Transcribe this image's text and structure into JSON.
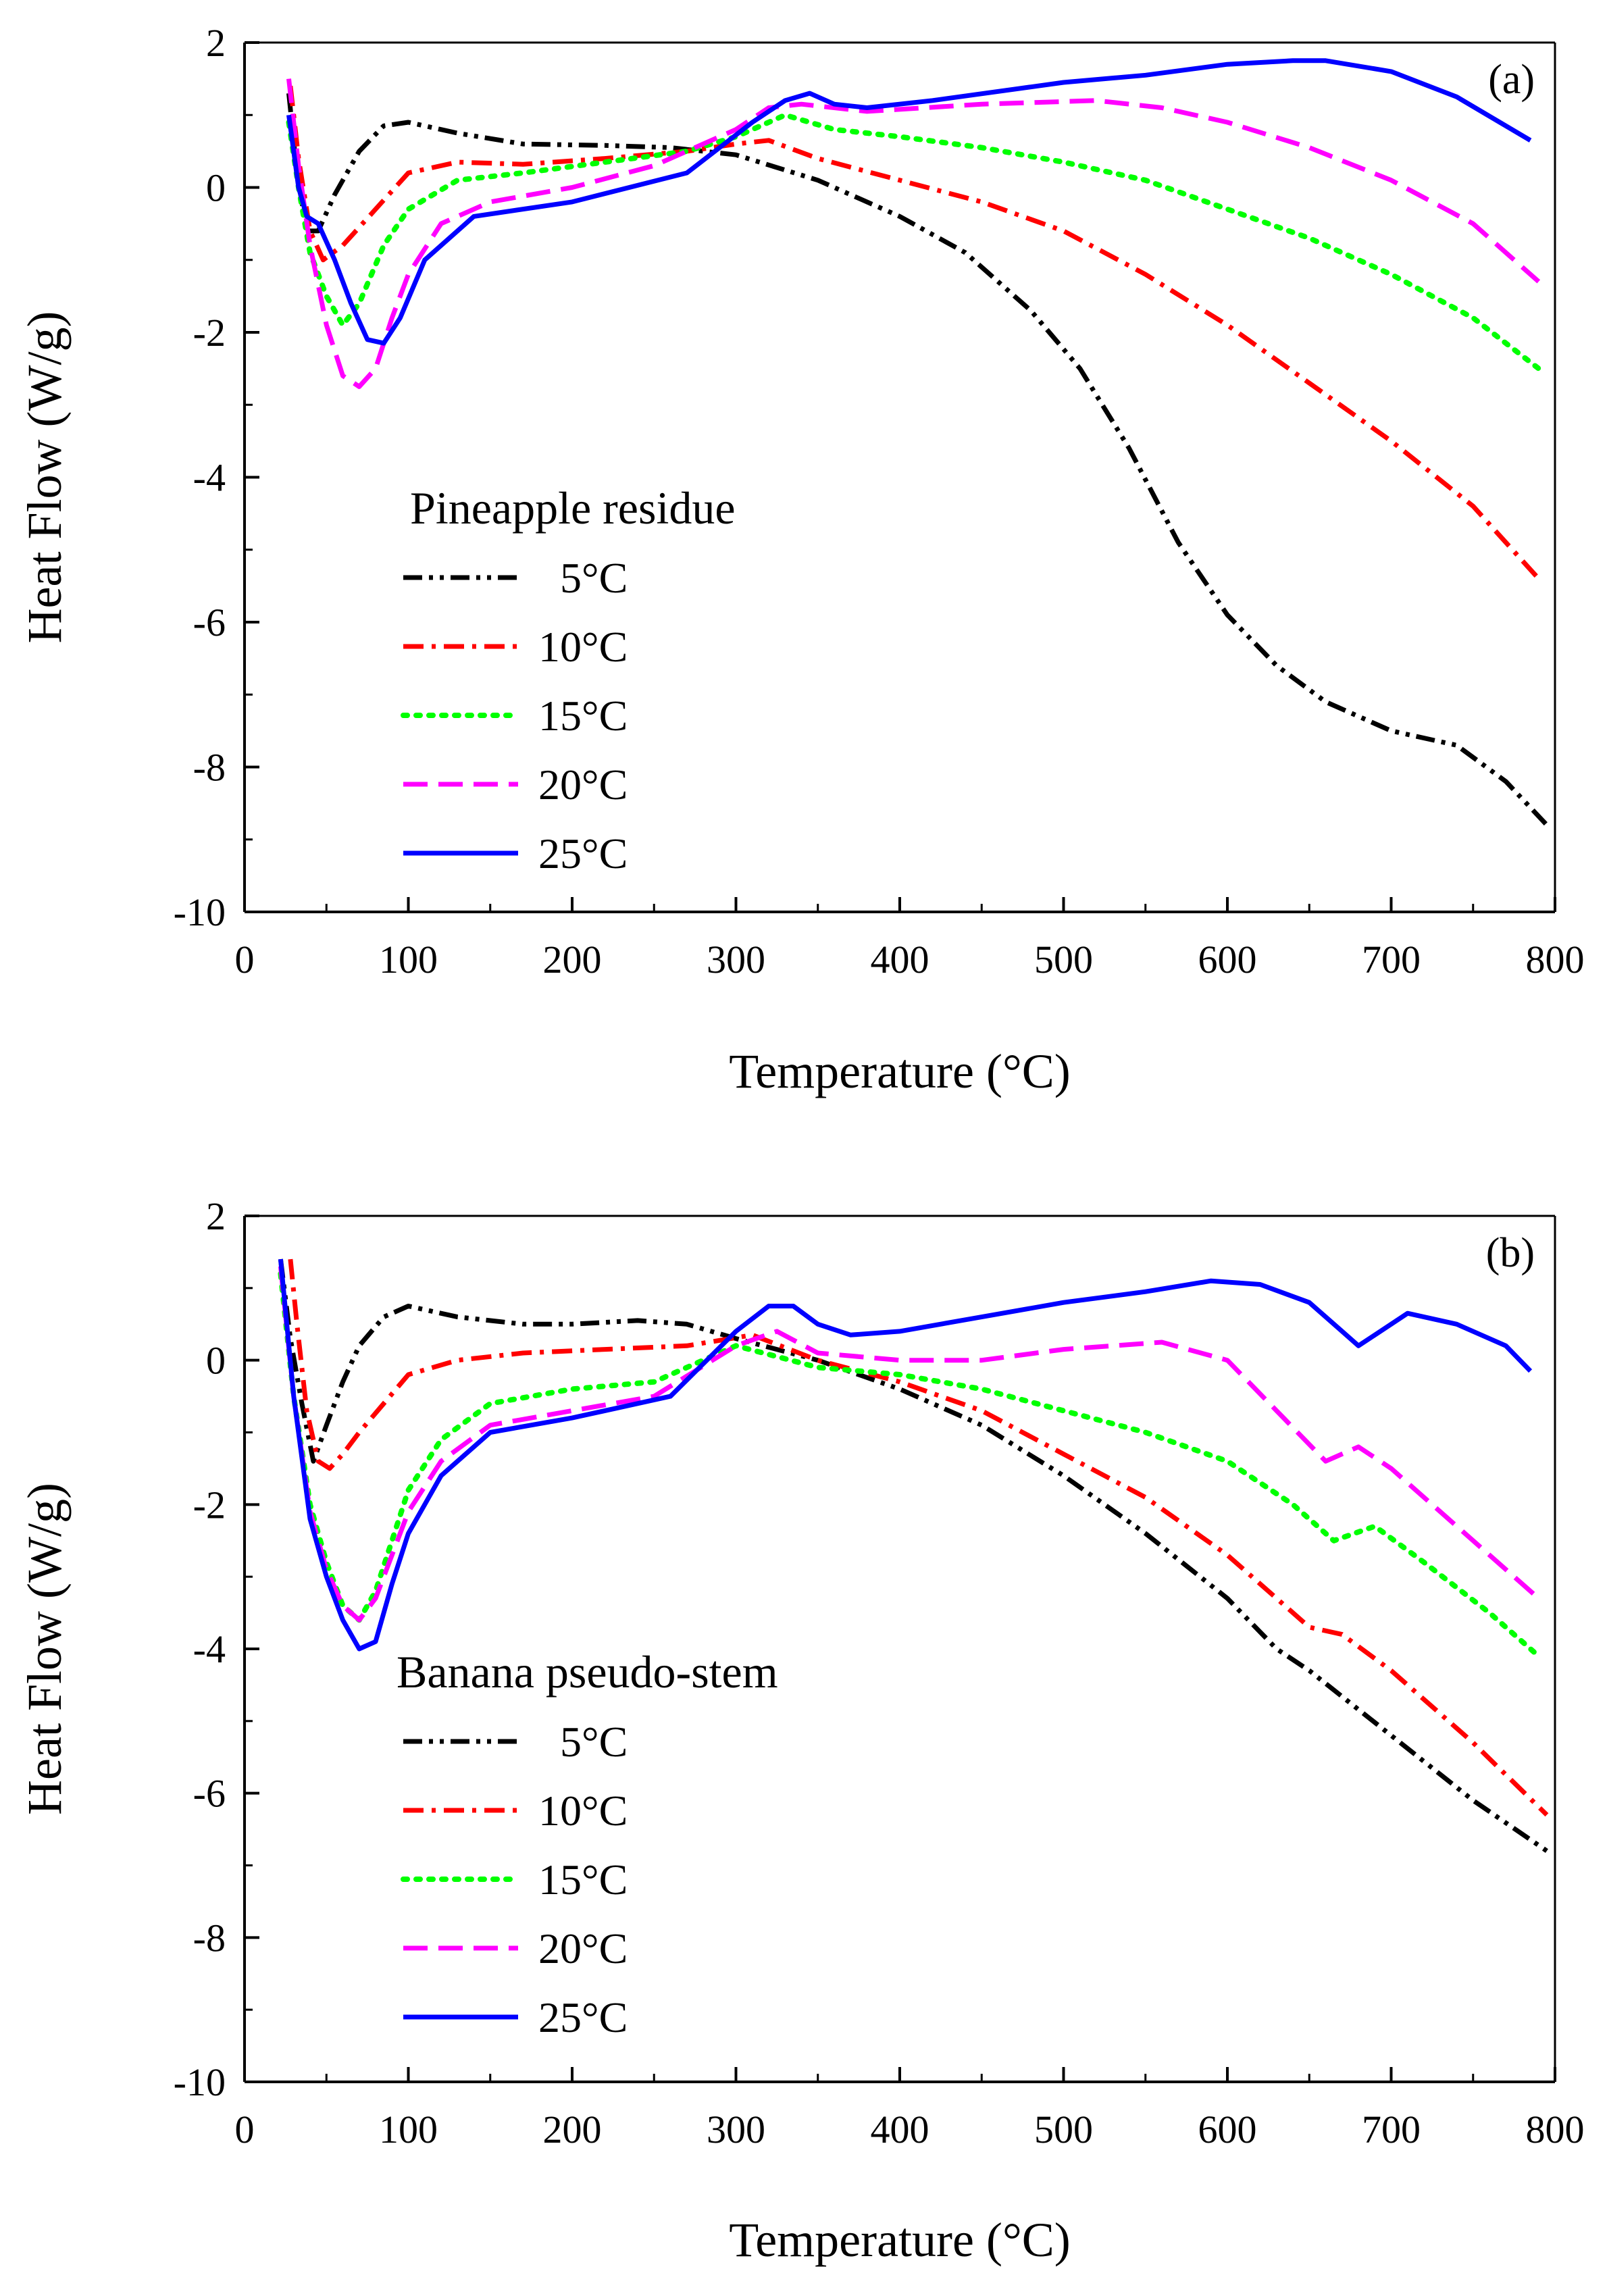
{
  "chart_data": [
    {
      "type": "line",
      "panel_label": "(a)",
      "xlabel": "Temperature (°C)",
      "ylabel": "Heat Flow (W/g)",
      "xlim": [
        0,
        800
      ],
      "ylim": [
        -10,
        2
      ],
      "xticks": [
        "0",
        "100",
        "200",
        "300",
        "400",
        "500",
        "600",
        "700",
        "800"
      ],
      "yticks": [
        "2",
        "0",
        "-2",
        "-4",
        "-6",
        "-8",
        "-10"
      ],
      "legend_title": "Pineapple residue",
      "legend_position": "left-center",
      "series": [
        {
          "name": "5°C",
          "color": "#000000",
          "style": "dashdotdot",
          "x": [
            27,
            32,
            38,
            45,
            55,
            70,
            85,
            100,
            130,
            170,
            220,
            260,
            300,
            350,
            400,
            440,
            480,
            510,
            540,
            570,
            600,
            630,
            660,
            700,
            740,
            770,
            795
          ],
          "y": [
            1.3,
            0.2,
            -0.6,
            -0.6,
            -0.1,
            0.5,
            0.85,
            0.9,
            0.75,
            0.6,
            0.58,
            0.55,
            0.45,
            0.1,
            -0.4,
            -0.9,
            -1.7,
            -2.5,
            -3.6,
            -4.9,
            -5.9,
            -6.6,
            -7.1,
            -7.5,
            -7.7,
            -8.2,
            -8.8
          ]
        },
        {
          "name": "10°C",
          "color": "#ff0000",
          "style": "dashdot",
          "x": [
            28,
            33,
            40,
            48,
            60,
            80,
            100,
            130,
            170,
            220,
            270,
            300,
            320,
            350,
            400,
            450,
            500,
            550,
            600,
            650,
            700,
            750,
            790
          ],
          "y": [
            1.4,
            0.4,
            -0.6,
            -1.0,
            -0.8,
            -0.3,
            0.2,
            0.35,
            0.32,
            0.4,
            0.5,
            0.6,
            0.65,
            0.4,
            0.1,
            -0.2,
            -0.6,
            -1.2,
            -1.9,
            -2.7,
            -3.5,
            -4.4,
            -5.4
          ]
        },
        {
          "name": "15°C",
          "color": "#00ff00",
          "style": "dotted",
          "x": [
            27,
            33,
            40,
            50,
            60,
            70,
            85,
            100,
            130,
            170,
            220,
            270,
            300,
            330,
            360,
            400,
            450,
            500,
            550,
            600,
            650,
            700,
            750,
            790
          ],
          "y": [
            0.9,
            0.0,
            -0.9,
            -1.5,
            -1.9,
            -1.6,
            -0.8,
            -0.3,
            0.1,
            0.2,
            0.35,
            0.5,
            0.7,
            1.0,
            0.8,
            0.7,
            0.55,
            0.35,
            0.1,
            -0.3,
            -0.7,
            -1.2,
            -1.8,
            -2.5
          ]
        },
        {
          "name": "20°C",
          "color": "#ff00ff",
          "style": "dashed",
          "x": [
            27,
            33,
            40,
            50,
            60,
            70,
            80,
            90,
            100,
            120,
            150,
            200,
            250,
            300,
            320,
            340,
            380,
            450,
            520,
            560,
            600,
            650,
            700,
            750,
            790
          ],
          "y": [
            1.5,
            0.3,
            -0.8,
            -1.9,
            -2.6,
            -2.75,
            -2.5,
            -1.8,
            -1.2,
            -0.5,
            -0.2,
            0.0,
            0.3,
            0.8,
            1.1,
            1.15,
            1.05,
            1.15,
            1.2,
            1.1,
            0.9,
            0.55,
            0.1,
            -0.5,
            -1.3
          ]
        },
        {
          "name": "25°C",
          "color": "#0000ff",
          "style": "solid",
          "x": [
            27,
            33,
            38,
            45,
            55,
            65,
            75,
            85,
            95,
            110,
            140,
            200,
            270,
            310,
            330,
            345,
            360,
            380,
            420,
            500,
            550,
            600,
            640,
            660,
            700,
            740,
            785
          ],
          "y": [
            1.0,
            0.0,
            -0.4,
            -0.5,
            -1.0,
            -1.6,
            -2.1,
            -2.15,
            -1.8,
            -1.0,
            -0.4,
            -0.2,
            0.2,
            0.9,
            1.2,
            1.3,
            1.15,
            1.1,
            1.2,
            1.45,
            1.55,
            1.7,
            1.75,
            1.75,
            1.6,
            1.25,
            0.65
          ]
        }
      ]
    },
    {
      "type": "line",
      "panel_label": "(b)",
      "xlabel": "Temperature (°C)",
      "ylabel": "Heat Flow (W/g)",
      "xlim": [
        0,
        800
      ],
      "ylim": [
        -10,
        2
      ],
      "xticks": [
        "0",
        "100",
        "200",
        "300",
        "400",
        "500",
        "600",
        "700",
        "800"
      ],
      "yticks": [
        "2",
        "0",
        "-2",
        "-4",
        "-6",
        "-8",
        "-10"
      ],
      "legend_title": "Banana pseudo-stem",
      "legend_position": "left-center",
      "series": [
        {
          "name": "5°C",
          "color": "#000000",
          "style": "dashdotdot",
          "x": [
            22,
            28,
            35,
            42,
            50,
            60,
            70,
            85,
            100,
            130,
            170,
            200,
            240,
            270,
            300,
            350,
            400,
            450,
            500,
            550,
            600,
            630,
            650,
            700,
            750,
            795
          ],
          "y": [
            1.4,
            0.3,
            -0.6,
            -1.4,
            -0.9,
            -0.3,
            0.2,
            0.6,
            0.75,
            0.6,
            0.5,
            0.5,
            0.55,
            0.5,
            0.3,
            0.0,
            -0.4,
            -0.9,
            -1.6,
            -2.4,
            -3.3,
            -4.0,
            -4.3,
            -5.2,
            -6.1,
            -6.8
          ]
        },
        {
          "name": "10°C",
          "color": "#ff0000",
          "style": "dashdot",
          "x": [
            28,
            32,
            38,
            45,
            52,
            60,
            70,
            85,
            100,
            130,
            170,
            220,
            270,
            310,
            350,
            400,
            450,
            500,
            550,
            600,
            630,
            650,
            670,
            700,
            750,
            795
          ],
          "y": [
            1.4,
            0.5,
            -0.7,
            -1.4,
            -1.5,
            -1.3,
            -1.0,
            -0.6,
            -0.2,
            0.0,
            0.1,
            0.15,
            0.2,
            0.35,
            0.0,
            -0.3,
            -0.7,
            -1.3,
            -1.9,
            -2.7,
            -3.3,
            -3.7,
            -3.8,
            -4.3,
            -5.3,
            -6.3
          ]
        },
        {
          "name": "15°C",
          "color": "#00ff00",
          "style": "dotted",
          "x": [
            22,
            30,
            40,
            50,
            60,
            70,
            80,
            90,
            100,
            120,
            150,
            200,
            250,
            300,
            350,
            400,
            450,
            500,
            550,
            600,
            640,
            665,
            690,
            720,
            760,
            790
          ],
          "y": [
            1.2,
            -0.5,
            -2.0,
            -2.8,
            -3.4,
            -3.6,
            -3.2,
            -2.5,
            -1.8,
            -1.1,
            -0.6,
            -0.4,
            -0.3,
            0.2,
            -0.1,
            -0.2,
            -0.4,
            -0.7,
            -1.0,
            -1.4,
            -2.0,
            -2.5,
            -2.3,
            -2.8,
            -3.5,
            -4.1
          ]
        },
        {
          "name": "20°C",
          "color": "#ff00ff",
          "style": "dashed",
          "x": [
            22,
            30,
            40,
            50,
            60,
            70,
            80,
            90,
            100,
            120,
            150,
            200,
            250,
            300,
            325,
            350,
            400,
            450,
            500,
            560,
            600,
            630,
            660,
            680,
            700,
            740,
            790
          ],
          "y": [
            1.3,
            -0.5,
            -2.1,
            -2.9,
            -3.4,
            -3.6,
            -3.3,
            -2.7,
            -2.1,
            -1.4,
            -0.9,
            -0.7,
            -0.5,
            0.2,
            0.4,
            0.1,
            0.0,
            0.0,
            0.15,
            0.25,
            0.0,
            -0.7,
            -1.4,
            -1.2,
            -1.5,
            -2.3,
            -3.3
          ]
        },
        {
          "name": "25°C",
          "color": "#0000ff",
          "style": "solid",
          "x": [
            22,
            30,
            40,
            50,
            60,
            70,
            80,
            90,
            100,
            120,
            150,
            200,
            260,
            300,
            320,
            335,
            350,
            370,
            400,
            450,
            500,
            550,
            590,
            620,
            650,
            670,
            680,
            690,
            710,
            740,
            770,
            785
          ],
          "y": [
            1.4,
            -0.5,
            -2.2,
            -3.0,
            -3.6,
            -4.0,
            -3.9,
            -3.1,
            -2.4,
            -1.6,
            -1.0,
            -0.8,
            -0.5,
            0.4,
            0.75,
            0.75,
            0.5,
            0.35,
            0.4,
            0.6,
            0.8,
            0.95,
            1.1,
            1.05,
            0.8,
            0.4,
            0.2,
            0.35,
            0.65,
            0.5,
            0.2,
            -0.15
          ]
        }
      ]
    }
  ]
}
